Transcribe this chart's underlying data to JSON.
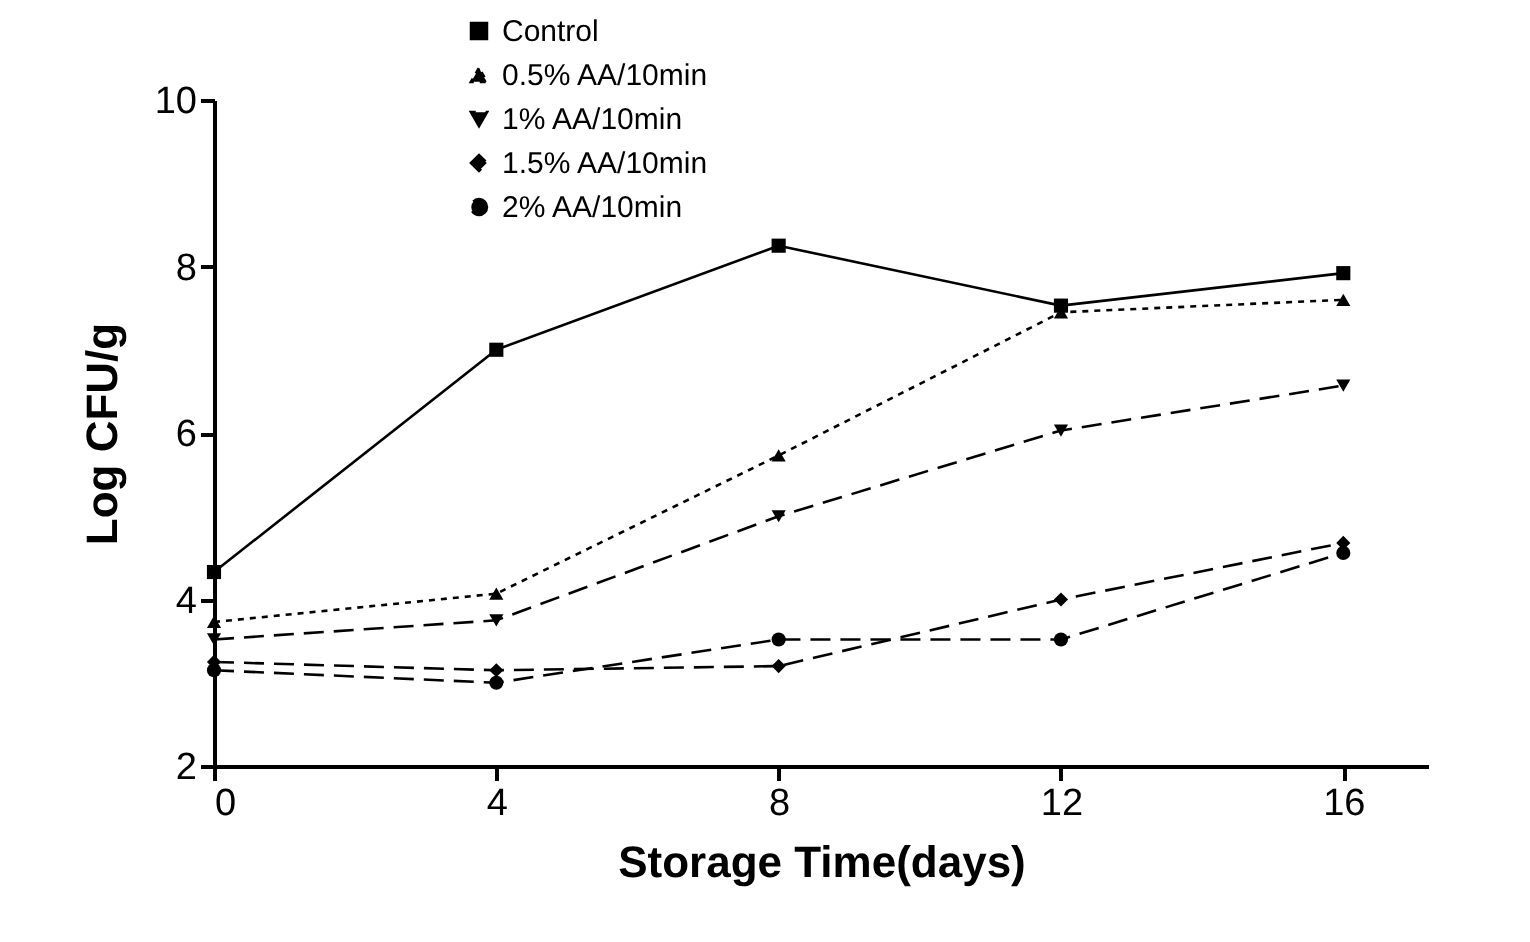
{
  "chart_data": {
    "type": "line",
    "xlabel": "Storage Time(days)",
    "ylabel": "Log CFU/g",
    "x": [
      0,
      4,
      8,
      12,
      16
    ],
    "series": [
      {
        "name": "Control",
        "color": "#000000",
        "marker": "square",
        "line_style": "solid",
        "values": [
          4.33,
          7.0,
          8.25,
          7.53,
          7.92
        ]
      },
      {
        "name": "0.5% AA/10min",
        "color": "#000000",
        "marker": "triangle",
        "line_style": "dotted",
        "values": [
          3.73,
          4.07,
          5.73,
          7.45,
          7.6
        ]
      },
      {
        "name": "1% AA/10min",
        "color": "#000000",
        "marker": "triangle-down",
        "line_style": "dashed",
        "values": [
          3.52,
          3.75,
          5.0,
          6.03,
          6.57
        ]
      },
      {
        "name": "1.5% AA/10min",
        "color": "#000000",
        "marker": "diamond",
        "line_style": "dashed",
        "values": [
          3.25,
          3.15,
          3.2,
          4.0,
          4.68
        ]
      },
      {
        "name": "2% AA/10min",
        "color": "#000000",
        "marker": "circle",
        "line_style": "dashed",
        "values": [
          3.15,
          3.0,
          3.52,
          3.52,
          4.56
        ]
      }
    ],
    "xlim": [
      0,
      17.2
    ],
    "xticks": [
      0,
      4,
      8,
      12,
      16
    ],
    "ylim": [
      2,
      10
    ],
    "yticks": [
      2,
      4,
      6,
      8,
      10
    ],
    "grid": false,
    "legend": "top left"
  }
}
